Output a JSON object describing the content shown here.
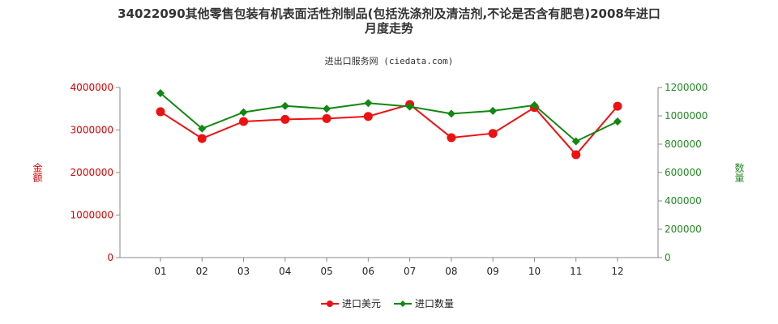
{
  "chart_data": {
    "type": "line",
    "title_line1": "34022090其他零售包装有机表面活性剂制品(包括洗涤剂及清洁剂,不论是否含有肥皂)2008年进口",
    "title_line2": "月度走势",
    "source": "进出口服务网 (ciedata.com)",
    "categories": [
      "01",
      "02",
      "03",
      "04",
      "05",
      "06",
      "07",
      "08",
      "09",
      "10",
      "11",
      "12"
    ],
    "y_left": {
      "label": "金额",
      "ylim": [
        0,
        4000000
      ],
      "ticks": [
        "0",
        "1000000",
        "2000000",
        "3000000",
        "4000000"
      ],
      "color": "#dd0000"
    },
    "y_right": {
      "label": "数量",
      "ylim": [
        0,
        1200000
      ],
      "ticks": [
        "0",
        "200000",
        "400000",
        "600000",
        "800000",
        "1000000",
        "1200000"
      ],
      "color": "#228822"
    },
    "series": [
      {
        "name": "进口美元",
        "axis": "left",
        "color": "#ee1111",
        "marker": "circle",
        "values": [
          3430000,
          2800000,
          3200000,
          3250000,
          3270000,
          3320000,
          3600000,
          2820000,
          2920000,
          3530000,
          2420000,
          3560000
        ]
      },
      {
        "name": "进口数量",
        "axis": "right",
        "color": "#118811",
        "marker": "diamond",
        "values": [
          1160000,
          910000,
          1025000,
          1070000,
          1050000,
          1090000,
          1065000,
          1015000,
          1035000,
          1075000,
          820000,
          960000
        ]
      }
    ],
    "grid": false
  }
}
